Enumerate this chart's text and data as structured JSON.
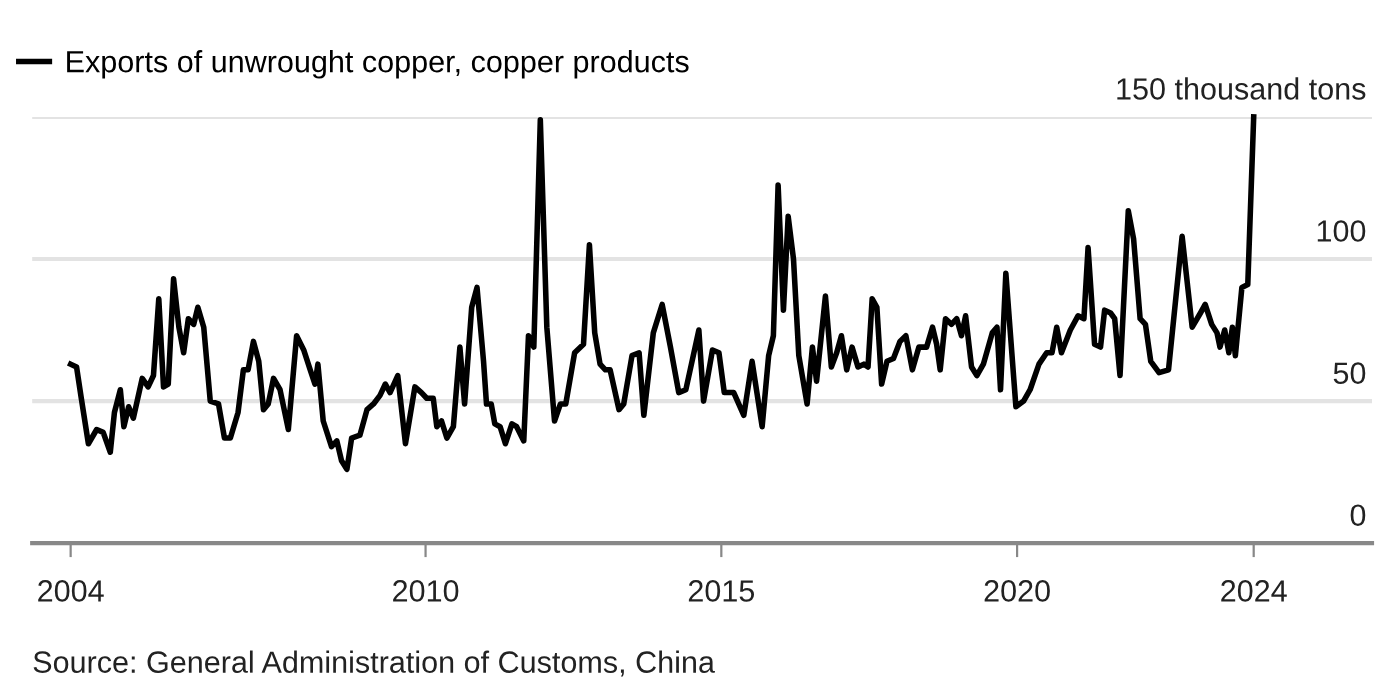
{
  "chart_data": {
    "type": "line",
    "x": [
      2004.0,
      2004.1,
      2004.18,
      2004.3,
      2004.44,
      2004.55,
      2004.67,
      2004.74,
      2004.84,
      2004.9,
      2004.98,
      2005.06,
      2005.21,
      2005.31,
      2005.4,
      2005.49,
      2005.57,
      2005.65,
      2005.74,
      2005.83,
      2005.91,
      2005.99,
      2006.08,
      2006.15,
      2006.25,
      2006.36,
      2006.5,
      2006.6,
      2006.7,
      2006.83,
      2006.92,
      2007.0,
      2007.09,
      2007.18,
      2007.26,
      2007.34,
      2007.43,
      2007.54,
      2007.68,
      2007.82,
      2007.94,
      2008.05,
      2008.13,
      2008.18,
      2008.27,
      2008.41,
      2008.5,
      2008.58,
      2008.67,
      2008.75,
      2008.89,
      2009.01,
      2009.12,
      2009.23,
      2009.32,
      2009.4,
      2009.53,
      2009.66,
      2009.82,
      2009.93,
      2010.02,
      2010.13,
      2010.19,
      2010.27,
      2010.36,
      2010.47,
      2010.58,
      2010.66,
      2010.78,
      2010.87,
      2010.98,
      2011.03,
      2011.11,
      2011.17,
      2011.26,
      2011.35,
      2011.46,
      2011.54,
      2011.66,
      2011.74,
      2011.83,
      2011.94,
      2012.05,
      2012.18,
      2012.28,
      2012.37,
      2012.52,
      2012.67,
      2012.77,
      2012.86,
      2012.95,
      2013.04,
      2013.12,
      2013.27,
      2013.35,
      2013.49,
      2013.61,
      2013.69,
      2013.85,
      2014.0,
      2014.14,
      2014.28,
      2014.4,
      2014.62,
      2014.7,
      2014.85,
      2014.96,
      2015.05,
      2015.21,
      2015.38,
      2015.52,
      2015.69,
      2015.8,
      2015.88,
      2015.96,
      2016.05,
      2016.13,
      2016.22,
      2016.31,
      2016.45,
      2016.54,
      2016.61,
      2016.76,
      2016.86,
      2016.95,
      2017.03,
      2017.12,
      2017.21,
      2017.31,
      2017.41,
      2017.48,
      2017.55,
      2017.63,
      2017.71,
      2017.8,
      2017.91,
      2018.02,
      2018.12,
      2018.23,
      2018.34,
      2018.47,
      2018.57,
      2018.64,
      2018.7,
      2018.79,
      2018.89,
      2018.98,
      2019.06,
      2019.13,
      2019.23,
      2019.32,
      2019.43,
      2019.58,
      2019.66,
      2019.72,
      2019.81,
      2019.98,
      2020.11,
      2020.22,
      2020.37,
      2020.5,
      2020.59,
      2020.67,
      2020.75,
      2020.9,
      2021.03,
      2021.13,
      2021.2,
      2021.31,
      2021.41,
      2021.48,
      2021.58,
      2021.65,
      2021.74,
      2021.88,
      2021.97,
      2022.08,
      2022.17,
      2022.26,
      2022.4,
      2022.56,
      2022.79,
      2022.96,
      2023.1,
      2023.18,
      2023.29,
      2023.38,
      2023.43,
      2023.51,
      2023.58,
      2023.64,
      2023.69,
      2023.8,
      2023.9,
      2024.0
    ],
    "series": [
      {
        "name": "Exports of unwrought copper, copper products",
        "color": "#000000",
        "values": [
          63,
          62,
          51,
          35,
          40,
          39,
          32,
          46,
          54,
          41,
          48,
          44,
          58,
          55,
          59,
          86,
          55,
          56,
          93,
          76,
          67,
          79,
          77,
          83,
          76,
          50,
          49,
          37,
          37,
          46,
          61,
          61,
          71,
          64,
          47,
          49,
          58,
          54,
          40,
          73,
          68,
          61,
          56,
          63,
          43,
          34,
          36,
          29,
          26,
          37,
          38,
          47,
          49,
          52,
          56,
          53,
          59,
          35,
          55,
          53,
          51,
          51,
          41,
          43,
          37,
          41,
          69,
          49,
          83,
          90,
          64,
          49,
          49,
          42,
          41,
          35,
          42,
          41,
          36,
          73,
          69,
          149,
          76,
          43,
          49,
          49,
          67,
          70,
          105,
          74,
          63,
          61,
          61,
          47,
          49,
          66,
          67,
          45,
          74,
          84,
          69,
          53,
          54,
          75,
          50,
          68,
          67,
          53,
          53,
          45,
          64,
          41,
          66,
          73,
          126,
          82,
          115,
          100,
          66,
          49,
          69,
          57,
          87,
          62,
          67,
          73,
          61,
          69,
          62,
          63,
          62,
          86,
          83,
          56,
          64,
          65,
          71,
          73,
          61,
          69,
          69,
          76,
          70,
          61,
          79,
          77,
          79,
          73,
          80,
          62,
          59,
          63,
          74,
          76,
          54,
          95,
          48,
          50,
          54,
          63,
          67,
          67,
          76,
          67,
          75,
          80,
          79,
          104,
          70,
          69,
          82,
          81,
          79,
          59,
          117,
          107,
          79,
          77,
          64,
          60,
          61,
          108,
          76,
          81,
          84,
          77,
          74,
          69,
          75,
          67,
          76,
          66,
          90,
          91,
          150
        ]
      }
    ],
    "xlim": [
      2003.35,
      2026.0
    ],
    "ylim": [
      0,
      150
    ],
    "xticks": [
      2004,
      2010,
      2015,
      2020,
      2024
    ],
    "yticks": [
      0,
      50,
      100,
      {
        "value": 150,
        "label": "150 thousand tons"
      }
    ],
    "grid": "y",
    "legend": "top left",
    "line_style": "solid",
    "marker": "none",
    "annotations": [
      "Source: General Administration of Customs, China"
    ]
  }
}
